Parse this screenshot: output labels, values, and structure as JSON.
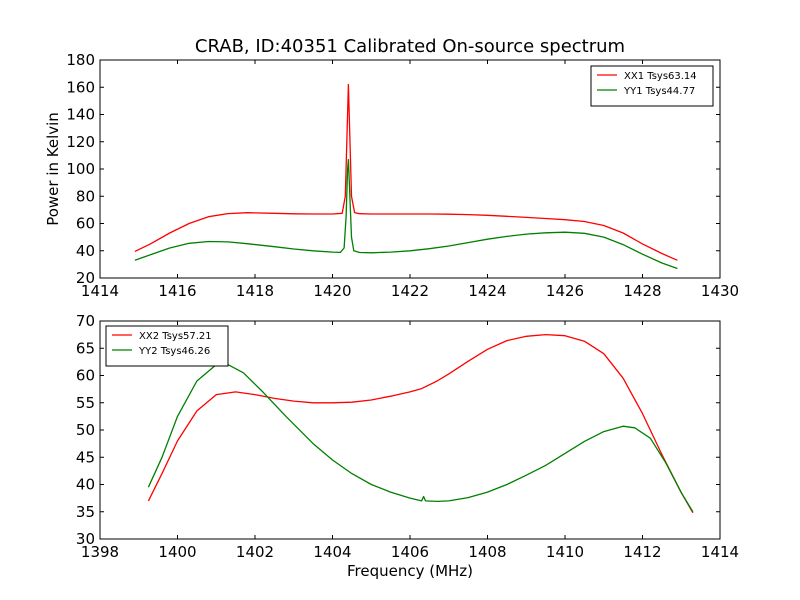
{
  "chart_data": [
    {
      "type": "line",
      "title": "CRAB, ID:40351 Calibrated On-source spectrum",
      "xlabel": "",
      "ylabel": "Power in Kelvin",
      "xlim": [
        1414,
        1430
      ],
      "ylim": [
        20,
        180
      ],
      "xticks": [
        1414,
        1416,
        1418,
        1420,
        1422,
        1424,
        1426,
        1428,
        1430
      ],
      "yticks": [
        20,
        40,
        60,
        80,
        100,
        120,
        140,
        160,
        180
      ],
      "grid": false,
      "legend_position": "top-right",
      "series": [
        {
          "name": "XX1 Tsys63.14",
          "color": "#ff0000",
          "points": [
            [
              1414.9,
              39.5
            ],
            [
              1415.3,
              45
            ],
            [
              1415.8,
              53
            ],
            [
              1416.3,
              60
            ],
            [
              1416.8,
              65
            ],
            [
              1417.3,
              67.3
            ],
            [
              1417.8,
              67.9
            ],
            [
              1418.5,
              67.5
            ],
            [
              1419.0,
              67.1
            ],
            [
              1419.5,
              67
            ],
            [
              1420.0,
              67
            ],
            [
              1420.25,
              67.5
            ],
            [
              1420.33,
              80
            ],
            [
              1420.38,
              130
            ],
            [
              1420.41,
              162
            ],
            [
              1420.44,
              130
            ],
            [
              1420.49,
              80
            ],
            [
              1420.57,
              68
            ],
            [
              1420.7,
              67.2
            ],
            [
              1421.0,
              67
            ],
            [
              1422.0,
              67
            ],
            [
              1422.5,
              67
            ],
            [
              1423.0,
              66.8
            ],
            [
              1423.5,
              66.5
            ],
            [
              1424.0,
              66
            ],
            [
              1424.5,
              65.3
            ],
            [
              1425.0,
              64.5
            ],
            [
              1425.5,
              63.7
            ],
            [
              1426.0,
              62.8
            ],
            [
              1426.5,
              61.5
            ],
            [
              1427.0,
              58.5
            ],
            [
              1427.5,
              53
            ],
            [
              1428.0,
              45
            ],
            [
              1428.5,
              38
            ],
            [
              1428.9,
              33
            ]
          ]
        },
        {
          "name": "YY1 Tsys44.77",
          "color": "#008000",
          "points": [
            [
              1414.9,
              33
            ],
            [
              1415.3,
              37
            ],
            [
              1415.8,
              42
            ],
            [
              1416.3,
              45.5
            ],
            [
              1416.8,
              46.8
            ],
            [
              1417.3,
              46.5
            ],
            [
              1417.8,
              45.2
            ],
            [
              1418.5,
              43
            ],
            [
              1419.0,
              41.3
            ],
            [
              1419.5,
              40
            ],
            [
              1420.0,
              39
            ],
            [
              1420.2,
              38.8
            ],
            [
              1420.3,
              42
            ],
            [
              1420.35,
              65
            ],
            [
              1420.39,
              100
            ],
            [
              1420.41,
              107
            ],
            [
              1420.44,
              85
            ],
            [
              1420.49,
              50
            ],
            [
              1420.55,
              40
            ],
            [
              1420.7,
              38.7
            ],
            [
              1421.0,
              38.5
            ],
            [
              1421.5,
              39
            ],
            [
              1422.0,
              40
            ],
            [
              1422.5,
              41.5
            ],
            [
              1423.0,
              43.5
            ],
            [
              1423.5,
              46
            ],
            [
              1424.0,
              48.5
            ],
            [
              1424.5,
              50.5
            ],
            [
              1425.0,
              52.2
            ],
            [
              1425.5,
              53.2
            ],
            [
              1426.0,
              53.6
            ],
            [
              1426.5,
              52.8
            ],
            [
              1427.0,
              50
            ],
            [
              1427.5,
              44.5
            ],
            [
              1428.0,
              37.5
            ],
            [
              1428.5,
              31
            ],
            [
              1428.9,
              27
            ]
          ]
        }
      ]
    },
    {
      "type": "line",
      "title": "",
      "xlabel": "Frequency (MHz)",
      "ylabel": "",
      "xlim": [
        1398,
        1414
      ],
      "ylim": [
        30,
        70
      ],
      "xticks": [
        1398,
        1400,
        1402,
        1404,
        1406,
        1408,
        1410,
        1412,
        1414
      ],
      "yticks": [
        30,
        35,
        40,
        45,
        50,
        55,
        60,
        65,
        70
      ],
      "grid": false,
      "legend_position": "top-left",
      "series": [
        {
          "name": "XX2 Tsys57.21",
          "color": "#ff0000",
          "points": [
            [
              1399.25,
              37
            ],
            [
              1399.6,
              42
            ],
            [
              1400.0,
              48
            ],
            [
              1400.5,
              53.5
            ],
            [
              1401.0,
              56.5
            ],
            [
              1401.5,
              57
            ],
            [
              1402.0,
              56.5
            ],
            [
              1402.5,
              55.8
            ],
            [
              1403.0,
              55.3
            ],
            [
              1403.5,
              55
            ],
            [
              1404.0,
              55
            ],
            [
              1404.5,
              55.1
            ],
            [
              1405.0,
              55.5
            ],
            [
              1405.5,
              56.2
            ],
            [
              1406.0,
              57
            ],
            [
              1406.3,
              57.6
            ],
            [
              1406.7,
              59
            ],
            [
              1407.0,
              60.3
            ],
            [
              1407.5,
              62.6
            ],
            [
              1408.0,
              64.8
            ],
            [
              1408.5,
              66.4
            ],
            [
              1409.0,
              67.2
            ],
            [
              1409.5,
              67.5
            ],
            [
              1410.0,
              67.3
            ],
            [
              1410.5,
              66.3
            ],
            [
              1411.0,
              64
            ],
            [
              1411.5,
              59.5
            ],
            [
              1412.0,
              53
            ],
            [
              1412.5,
              45.5
            ],
            [
              1413.0,
              38.5
            ],
            [
              1413.3,
              34.8
            ]
          ]
        },
        {
          "name": "YY2 Tsys46.26",
          "color": "#008000",
          "points": [
            [
              1399.25,
              39.5
            ],
            [
              1399.6,
              45
            ],
            [
              1400.0,
              52.5
            ],
            [
              1400.5,
              59
            ],
            [
              1401.0,
              62
            ],
            [
              1401.3,
              62
            ],
            [
              1401.7,
              60.5
            ],
            [
              1402.2,
              57
            ],
            [
              1402.8,
              52.5
            ],
            [
              1403.5,
              47.5
            ],
            [
              1404.0,
              44.5
            ],
            [
              1404.5,
              42
            ],
            [
              1405.0,
              40
            ],
            [
              1405.5,
              38.6
            ],
            [
              1406.0,
              37.5
            ],
            [
              1406.3,
              37
            ],
            [
              1406.35,
              37.8
            ],
            [
              1406.4,
              37
            ],
            [
              1406.7,
              36.9
            ],
            [
              1407.0,
              37
            ],
            [
              1407.5,
              37.6
            ],
            [
              1408.0,
              38.6
            ],
            [
              1408.5,
              40
            ],
            [
              1409.0,
              41.7
            ],
            [
              1409.5,
              43.5
            ],
            [
              1410.0,
              45.7
            ],
            [
              1410.5,
              47.9
            ],
            [
              1411.0,
              49.7
            ],
            [
              1411.5,
              50.7
            ],
            [
              1411.8,
              50.4
            ],
            [
              1412.2,
              48.5
            ],
            [
              1412.6,
              44
            ],
            [
              1413.0,
              38.5
            ],
            [
              1413.3,
              35
            ]
          ]
        }
      ]
    }
  ]
}
